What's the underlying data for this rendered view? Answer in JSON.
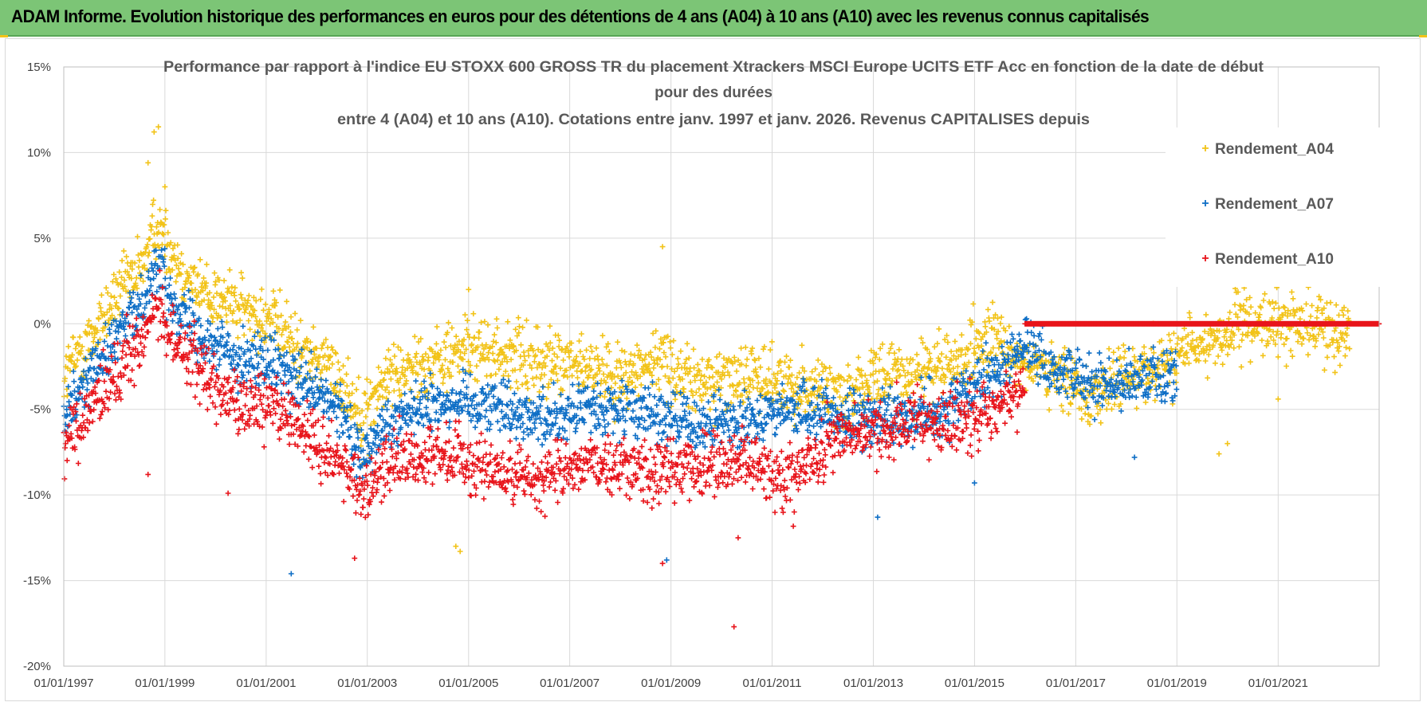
{
  "header": {
    "title": "ADAM Informe. Evolution historique des performances en euros pour des détentions de 4 ans (A04) à 10 ans (A10) avec les revenus connus capitalisés"
  },
  "colors": {
    "banner": "#7cc576",
    "A04": "#f2c318",
    "A07": "#0f6fc6",
    "A10": "#e8141b",
    "grid": "#d9d9d9"
  },
  "chart_data": {
    "type": "scatter",
    "title_lines": [
      "Performance par rapport à l'indice EU STOXX 600 GROSS TR  du placement Xtrackers MSCI Europe UCITS ETF Acc en fonction de la date de début",
      "pour des durées",
      "entre 4 (A04) et 10 ans (A10). Cotations entre janv. 1997 et janv. 2026. Revenus CAPITALISES depuis"
    ],
    "x_axis": {
      "type": "date",
      "range": [
        "1997-01-01",
        "2022-12-31"
      ],
      "tick_labels": [
        "01/01/1997",
        "01/01/1999",
        "01/01/2001",
        "01/01/2003",
        "01/01/2005",
        "01/01/2007",
        "01/01/2009",
        "01/01/2011",
        "01/01/2013",
        "01/01/2015",
        "01/01/2017",
        "01/01/2019",
        "01/01/2021"
      ]
    },
    "y_axis": {
      "range": [
        -20,
        15
      ],
      "unit": "%",
      "tick_values": [
        15,
        10,
        5,
        0,
        -5,
        -10,
        -15,
        -20
      ],
      "tick_labels": [
        "15%",
        "10%",
        "5%",
        "0%",
        "-5%",
        "-10%",
        "-15%",
        "-20%"
      ]
    },
    "grid": true,
    "legend_position": "top-right",
    "series": [
      {
        "name": "Rendement_A04",
        "marker": "+",
        "trend": [
          [
            "1997-01-01",
            -3.0
          ],
          [
            "1997-07-01",
            -1.0
          ],
          [
            "1998-01-01",
            1.5
          ],
          [
            "1998-07-01",
            3.0
          ],
          [
            "1998-11-01",
            6.0
          ],
          [
            "1999-03-01",
            4.0
          ],
          [
            "1999-09-01",
            2.0
          ],
          [
            "2000-06-01",
            1.0
          ],
          [
            "2001-03-01",
            0.0
          ],
          [
            "2001-09-01",
            -1.5
          ],
          [
            "2002-06-01",
            -3.0
          ],
          [
            "2002-12-01",
            -5.5
          ],
          [
            "2003-06-01",
            -3.0
          ],
          [
            "2004-06-01",
            -2.0
          ],
          [
            "2005-01-01",
            -1.5
          ],
          [
            "2006-01-01",
            -2.0
          ],
          [
            "2007-01-01",
            -2.5
          ],
          [
            "2008-01-01",
            -3.0
          ],
          [
            "2008-11-01",
            -2.0
          ],
          [
            "2009-06-01",
            -3.5
          ],
          [
            "2010-06-01",
            -3.0
          ],
          [
            "2011-06-01",
            -3.5
          ],
          [
            "2012-06-01",
            -4.0
          ],
          [
            "2013-06-01",
            -3.0
          ],
          [
            "2014-06-01",
            -2.5
          ],
          [
            "2015-06-01",
            -1.0
          ],
          [
            "2016-06-01",
            -3.0
          ],
          [
            "2017-06-01",
            -4.0
          ],
          [
            "2018-06-01",
            -2.5
          ],
          [
            "2019-06-01",
            -1.5
          ],
          [
            "2020-06-01",
            0.0
          ],
          [
            "2021-06-01",
            0.0
          ],
          [
            "2022-06-01",
            -0.5
          ]
        ],
        "outliers": [
          [
            "1998-11-15",
            11.5
          ],
          [
            "1998-10-15",
            11.2
          ],
          [
            "1998-09-01",
            9.4
          ],
          [
            "1999-01-01",
            8.0
          ],
          [
            "2008-11-01",
            4.5
          ],
          [
            "2005-01-01",
            2.0
          ],
          [
            "2020-01-01",
            -7.0
          ],
          [
            "2019-11-01",
            -7.6
          ],
          [
            "2004-10-01",
            -13.0
          ],
          [
            "2004-11-01",
            -13.3
          ],
          [
            "2021-01-01",
            -4.4
          ]
        ]
      },
      {
        "name": "Rendement_A07",
        "marker": "+",
        "trend": [
          [
            "1997-01-01",
            -5.0
          ],
          [
            "1997-07-01",
            -3.0
          ],
          [
            "1998-01-01",
            -1.0
          ],
          [
            "1998-07-01",
            1.0
          ],
          [
            "1998-11-01",
            3.5
          ],
          [
            "1999-03-01",
            1.5
          ],
          [
            "1999-09-01",
            -0.5
          ],
          [
            "2000-06-01",
            -2.0
          ],
          [
            "2001-03-01",
            -2.5
          ],
          [
            "2001-09-01",
            -3.5
          ],
          [
            "2002-06-01",
            -5.0
          ],
          [
            "2002-12-01",
            -8.0
          ],
          [
            "2003-06-01",
            -5.5
          ],
          [
            "2004-06-01",
            -4.5
          ],
          [
            "2005-06-01",
            -4.5
          ],
          [
            "2006-06-01",
            -5.5
          ],
          [
            "2007-06-01",
            -5.0
          ],
          [
            "2008-06-01",
            -5.0
          ],
          [
            "2009-06-01",
            -6.0
          ],
          [
            "2010-06-01",
            -5.5
          ],
          [
            "2011-06-01",
            -5.0
          ],
          [
            "2012-06-01",
            -5.5
          ],
          [
            "2013-06-01",
            -5.5
          ],
          [
            "2014-06-01",
            -5.0
          ],
          [
            "2015-06-01",
            -3.0
          ],
          [
            "2016-01-01",
            -1.0
          ],
          [
            "2016-06-01",
            -2.5
          ],
          [
            "2017-06-01",
            -3.5
          ],
          [
            "2018-06-01",
            -3.0
          ],
          [
            "2018-12-31",
            -3.0
          ]
        ],
        "outliers": [
          [
            "2001-07-01",
            -14.6
          ],
          [
            "2008-12-01",
            -13.8
          ],
          [
            "2013-02-01",
            -11.3
          ],
          [
            "2018-03-01",
            -7.8
          ],
          [
            "2015-01-01",
            -9.3
          ]
        ]
      },
      {
        "name": "Rendement_A10",
        "marker": "+",
        "trend": [
          [
            "1997-01-01",
            -7.0
          ],
          [
            "1997-07-01",
            -5.0
          ],
          [
            "1998-01-01",
            -3.0
          ],
          [
            "1998-07-01",
            -1.0
          ],
          [
            "1998-11-01",
            1.0
          ],
          [
            "1999-03-01",
            -1.0
          ],
          [
            "1999-09-01",
            -2.5
          ],
          [
            "2000-06-01",
            -5.0
          ],
          [
            "2001-03-01",
            -4.5
          ],
          [
            "2001-09-01",
            -6.0
          ],
          [
            "2002-06-01",
            -8.0
          ],
          [
            "2002-12-01",
            -10.0
          ],
          [
            "2003-06-01",
            -8.0
          ],
          [
            "2004-06-01",
            -7.5
          ],
          [
            "2005-06-01",
            -8.5
          ],
          [
            "2006-06-01",
            -9.0
          ],
          [
            "2007-06-01",
            -8.0
          ],
          [
            "2008-06-01",
            -8.5
          ],
          [
            "2009-06-01",
            -8.5
          ],
          [
            "2010-06-01",
            -8.0
          ],
          [
            "2011-06-01",
            -9.0
          ],
          [
            "2012-06-01",
            -6.5
          ],
          [
            "2013-06-01",
            -6.0
          ],
          [
            "2014-06-01",
            -6.0
          ],
          [
            "2015-06-01",
            -5.0
          ],
          [
            "2015-12-31",
            -4.0
          ]
        ],
        "flat": {
          "from": "2016-01-01",
          "to": "2022-12-31",
          "value": 0.0
        },
        "outliers": [
          [
            "2010-04-01",
            -17.7
          ],
          [
            "2008-11-01",
            -14.0
          ],
          [
            "2002-10-01",
            -13.7
          ],
          [
            "1998-09-01",
            -8.8
          ],
          [
            "2000-04-01",
            -9.9
          ],
          [
            "2010-05-01",
            -12.5
          ]
        ]
      }
    ]
  }
}
